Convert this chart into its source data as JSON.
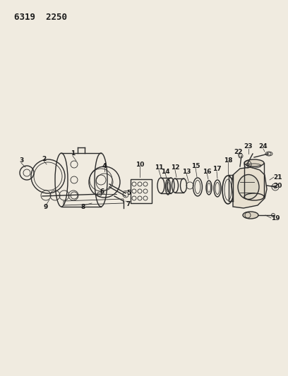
{
  "title": "6319  2250",
  "bg_color": "#f0ebe0",
  "line_color": "#2a2a2a",
  "text_color": "#1a1a1a",
  "fig_width": 4.08,
  "fig_height": 5.33,
  "dpi": 100
}
